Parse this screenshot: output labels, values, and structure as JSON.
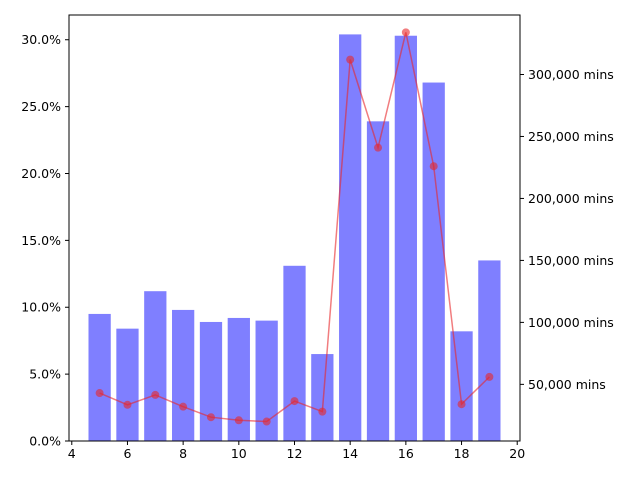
{
  "chart_data": {
    "type": "bar+line",
    "title": "",
    "xlabel": "",
    "ylabel_left": "",
    "ylabel_right": "",
    "grid": false,
    "legend": "none",
    "x": [
      5,
      6,
      7,
      8,
      9,
      10,
      11,
      12,
      13,
      14,
      15,
      16,
      17,
      18,
      19
    ],
    "xlim": [
      3.9,
      20.1
    ],
    "x_ticks": [
      4,
      6,
      8,
      10,
      12,
      14,
      16,
      18,
      20
    ],
    "series": [
      {
        "type": "bar",
        "axis": "left",
        "color": "#0000ff",
        "opacity": 0.5,
        "bar_width": 0.8,
        "values": [
          0.095,
          0.084,
          0.112,
          0.098,
          0.089,
          0.092,
          0.09,
          0.131,
          0.065,
          0.304,
          0.239,
          0.303,
          0.268,
          0.082,
          0.135
        ]
      },
      {
        "type": "line",
        "axis": "right",
        "color": "#e8262a",
        "opacity": 0.6,
        "marker": "circle",
        "values": [
          43000,
          33500,
          41500,
          32000,
          23500,
          21000,
          20000,
          36500,
          28000,
          312000,
          241000,
          334000,
          226000,
          34000,
          56000
        ]
      }
    ],
    "y_left": {
      "lim": [
        0,
        0.3185
      ],
      "ticks": [
        0,
        0.05,
        0.1,
        0.15,
        0.2,
        0.25,
        0.3
      ],
      "tick_labels": [
        "0.0%",
        "5.0%",
        "10.0%",
        "15.0%",
        "20.0%",
        "25.0%",
        "30.0%"
      ]
    },
    "y_right": {
      "lim": [
        4300,
        348000
      ],
      "ticks": [
        50000,
        100000,
        150000,
        200000,
        250000,
        300000
      ],
      "tick_labels": [
        "50,000 mins",
        "100,000 mins",
        "150,000 mins",
        "200,000 mins",
        "250,000 mins",
        "300,000 mins"
      ]
    }
  }
}
